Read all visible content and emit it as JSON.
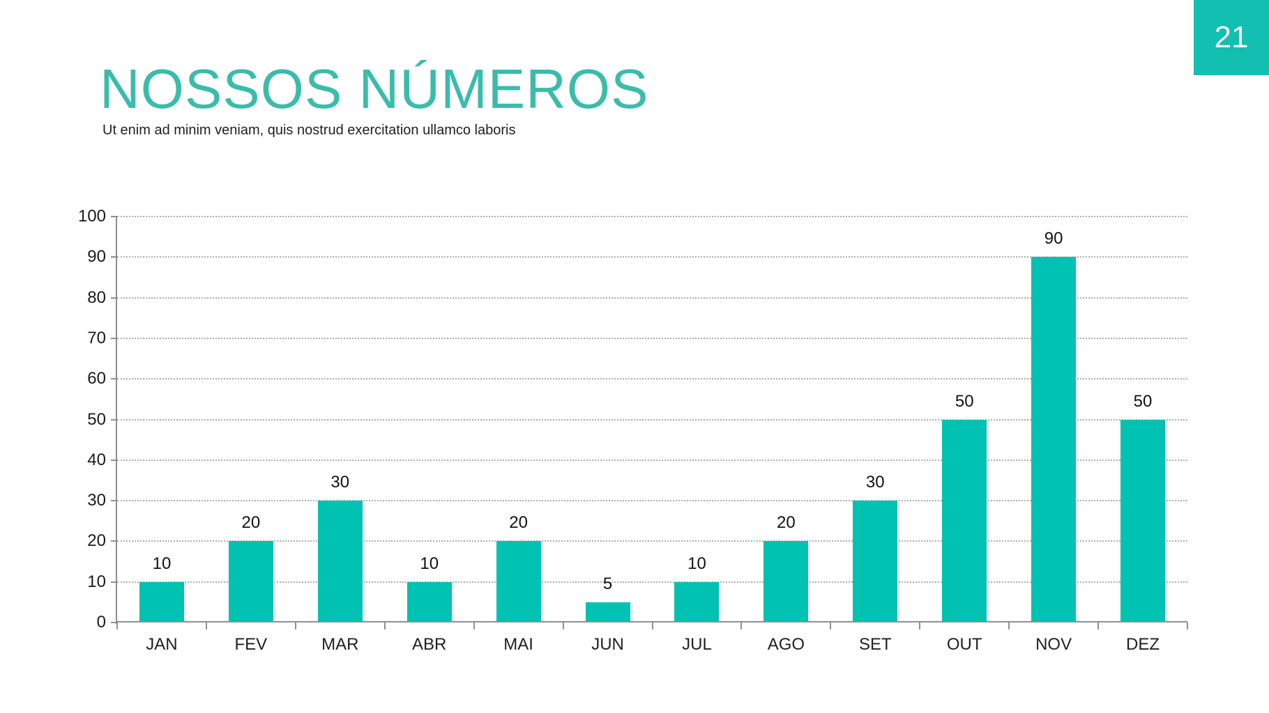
{
  "page": {
    "number": "21",
    "badge_color": "#12bfb0"
  },
  "header": {
    "title": "NOSSOS NÚMEROS",
    "subtitle": "Ut enim ad minim veniam, quis nostrud exercitation ullamco laboris",
    "title_color": "#3bbcab"
  },
  "chart_data": {
    "type": "bar",
    "categories": [
      "JAN",
      "FEV",
      "MAR",
      "ABR",
      "MAI",
      "JUN",
      "JUL",
      "AGO",
      "SET",
      "OUT",
      "NOV",
      "DEZ"
    ],
    "values": [
      10,
      20,
      30,
      10,
      20,
      5,
      10,
      20,
      30,
      50,
      90,
      50
    ],
    "title": "",
    "xlabel": "",
    "ylabel": "",
    "ylim": [
      0,
      100
    ],
    "yticks": [
      0,
      10,
      20,
      30,
      40,
      50,
      60,
      70,
      80,
      90,
      100
    ],
    "grid": "horizontal-dotted",
    "legend": "none",
    "data_labels": true,
    "bar_color": "#00c2b2",
    "axis_color": "#8f8f8f",
    "gridline_color": "#aaaaaa",
    "label_color": "#1a1a1a"
  }
}
